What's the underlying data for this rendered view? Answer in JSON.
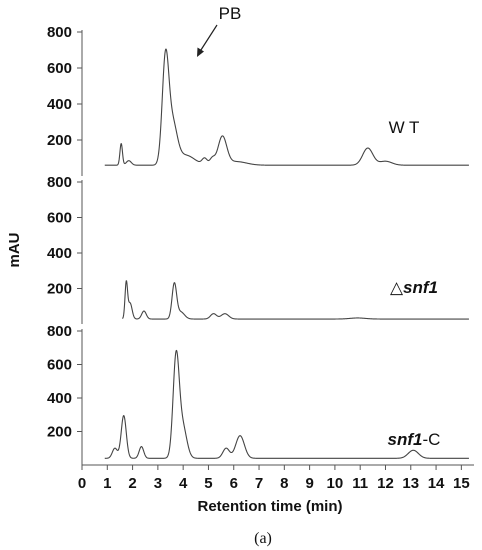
{
  "chart_data": {
    "type": "line",
    "xlabel": "Retention time (min)",
    "ylabel": "mAU",
    "caption": "(a)",
    "xlim": [
      0,
      15.5
    ],
    "x_ticks": [
      0,
      1,
      2,
      3,
      4,
      5,
      6,
      7,
      8,
      9,
      10,
      11,
      12,
      13,
      14,
      15
    ],
    "annotation": {
      "text": "PB",
      "x": 4.4,
      "panel": 0
    },
    "panels": [
      {
        "label_parts": [
          {
            "text": "W T",
            "italic": false
          }
        ],
        "ylim": [
          0,
          800
        ],
        "y_ticks": [
          200,
          400,
          600,
          800
        ],
        "x_start": 0.9,
        "baseline": 60,
        "series": [
          {
            "c": 1.55,
            "h": 120,
            "w": 0.05
          },
          {
            "c": 1.85,
            "h": 25,
            "w": 0.1
          },
          {
            "c": 3.3,
            "h": 570,
            "w": 0.13
          },
          {
            "c": 3.58,
            "h": 220,
            "w": 0.18
          },
          {
            "c": 4.1,
            "h": 55,
            "w": 0.35
          },
          {
            "c": 4.85,
            "h": 35,
            "w": 0.1
          },
          {
            "c": 5.15,
            "h": 35,
            "w": 0.1
          },
          {
            "c": 5.55,
            "h": 155,
            "w": 0.17
          },
          {
            "c": 6.1,
            "h": 20,
            "w": 0.4
          },
          {
            "c": 11.3,
            "h": 95,
            "w": 0.2
          },
          {
            "c": 12.0,
            "h": 22,
            "w": 0.25
          }
        ]
      },
      {
        "label_parts": [
          {
            "text": "△",
            "italic": false
          },
          {
            "text": "snf1",
            "italic": true
          }
        ],
        "ylim": [
          0,
          800
        ],
        "y_ticks": [
          200,
          400,
          600,
          800
        ],
        "x_start": 1.6,
        "baseline": 28,
        "series": [
          {
            "c": 1.75,
            "h": 200,
            "w": 0.05
          },
          {
            "c": 1.9,
            "h": 90,
            "w": 0.08
          },
          {
            "c": 2.45,
            "h": 45,
            "w": 0.09
          },
          {
            "c": 3.65,
            "h": 195,
            "w": 0.09
          },
          {
            "c": 3.9,
            "h": 40,
            "w": 0.15
          },
          {
            "c": 5.2,
            "h": 30,
            "w": 0.12
          },
          {
            "c": 5.65,
            "h": 30,
            "w": 0.15
          },
          {
            "c": 10.9,
            "h": 6,
            "w": 0.3
          }
        ]
      },
      {
        "label_parts": [
          {
            "text": "snf1",
            "italic": true
          },
          {
            "text": "-C",
            "italic": false
          }
        ],
        "ylim": [
          0,
          800
        ],
        "y_ticks": [
          200,
          400,
          600,
          800
        ],
        "x_start": 0.9,
        "baseline": 40,
        "series": [
          {
            "c": 1.3,
            "h": 60,
            "w": 0.1
          },
          {
            "c": 1.65,
            "h": 255,
            "w": 0.1
          },
          {
            "c": 2.35,
            "h": 70,
            "w": 0.09
          },
          {
            "c": 3.72,
            "h": 590,
            "w": 0.12
          },
          {
            "c": 3.98,
            "h": 190,
            "w": 0.16
          },
          {
            "c": 5.7,
            "h": 60,
            "w": 0.13
          },
          {
            "c": 6.25,
            "h": 135,
            "w": 0.17
          },
          {
            "c": 13.1,
            "h": 48,
            "w": 0.2
          }
        ]
      }
    ]
  }
}
